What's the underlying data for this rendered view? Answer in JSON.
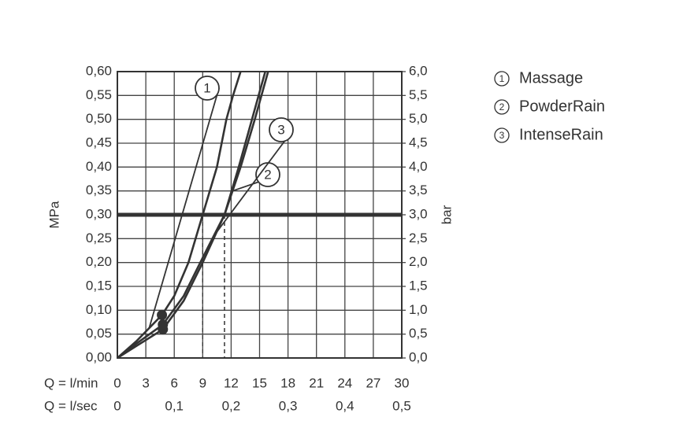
{
  "chart_data": {
    "type": "line",
    "y_label": "MPa",
    "y2_label": "bar",
    "x_label": "Q = l/min",
    "x2_label": "Q = l/sec",
    "xlim": [
      0,
      30
    ],
    "xticks": [
      0,
      3,
      6,
      9,
      12,
      15,
      18,
      21,
      24,
      27,
      30
    ],
    "x2lim": [
      0,
      0.5
    ],
    "x2ticks": [
      0,
      {
        "value": 0.1,
        "label": "0,1"
      },
      {
        "value": 0.2,
        "label": "0,2"
      },
      {
        "value": 0.3,
        "label": "0,3"
      },
      {
        "value": 0.4,
        "label": "0,4"
      },
      {
        "value": 0.5,
        "label": "0,5"
      }
    ],
    "ylim": [
      0,
      0.6
    ],
    "yticks": [
      {
        "value": 0,
        "label": "0,00"
      },
      {
        "value": 0.05,
        "label": "0,05"
      },
      {
        "value": 0.1,
        "label": "0,10"
      },
      {
        "value": 0.15,
        "label": "0,15"
      },
      {
        "value": 0.2,
        "label": "0,20"
      },
      {
        "value": 0.25,
        "label": "0,25"
      },
      {
        "value": 0.3,
        "label": "0,30"
      },
      {
        "value": 0.35,
        "label": "0,35"
      },
      {
        "value": 0.4,
        "label": "0,40"
      },
      {
        "value": 0.45,
        "label": "0,45"
      },
      {
        "value": 0.5,
        "label": "0,50"
      },
      {
        "value": 0.55,
        "label": "0,55"
      },
      {
        "value": 0.6,
        "label": "0,60"
      }
    ],
    "y2lim": [
      0,
      6
    ],
    "y2ticks": [
      {
        "value": 0,
        "label": "0,0"
      },
      {
        "value": 0.5,
        "label": "0,5"
      },
      {
        "value": 1,
        "label": "1,0"
      },
      {
        "value": 1.5,
        "label": "1,5"
      },
      {
        "value": 2,
        "label": "2,0"
      },
      {
        "value": 2.5,
        "label": "2,5"
      },
      {
        "value": 3,
        "label": "3,0"
      },
      {
        "value": 3.5,
        "label": "3,5"
      },
      {
        "value": 4,
        "label": "4,0"
      },
      {
        "value": 4.5,
        "label": "4,5"
      },
      {
        "value": 5,
        "label": "5,0"
      },
      {
        "value": 5.5,
        "label": "5,5"
      },
      {
        "value": 6,
        "label": "6,0"
      }
    ],
    "grid": true,
    "reference_line": 0.3,
    "reference_index": 5,
    "marker_index": 2,
    "legend": "right",
    "series": [
      {
        "name": "Massage",
        "label": "1",
        "color": "#333333",
        "x": [
          0,
          2,
          4.7,
          6,
          7.5,
          9,
          10.5,
          11.5,
          12.2,
          13
        ],
        "y": [
          0,
          0.035,
          0.09,
          0.13,
          0.2,
          0.3,
          0.4,
          0.5,
          0.55,
          0.6
        ]
      },
      {
        "name": "PowderRain",
        "label": "2",
        "color": "#333333",
        "x": [
          0,
          2,
          4.8,
          7,
          9,
          11.3,
          13,
          14.5,
          15.9
        ],
        "y": [
          0,
          0.025,
          0.06,
          0.12,
          0.2,
          0.3,
          0.4,
          0.5,
          0.6
        ]
      },
      {
        "name": "IntenseRain",
        "label": "3",
        "color": "#333333",
        "x": [
          0,
          2,
          4.8,
          7,
          9,
          11.3,
          12.8,
          14.2,
          15.6
        ],
        "y": [
          0,
          0.03,
          0.07,
          0.13,
          0.21,
          0.3,
          0.4,
          0.5,
          0.6
        ]
      }
    ]
  }
}
